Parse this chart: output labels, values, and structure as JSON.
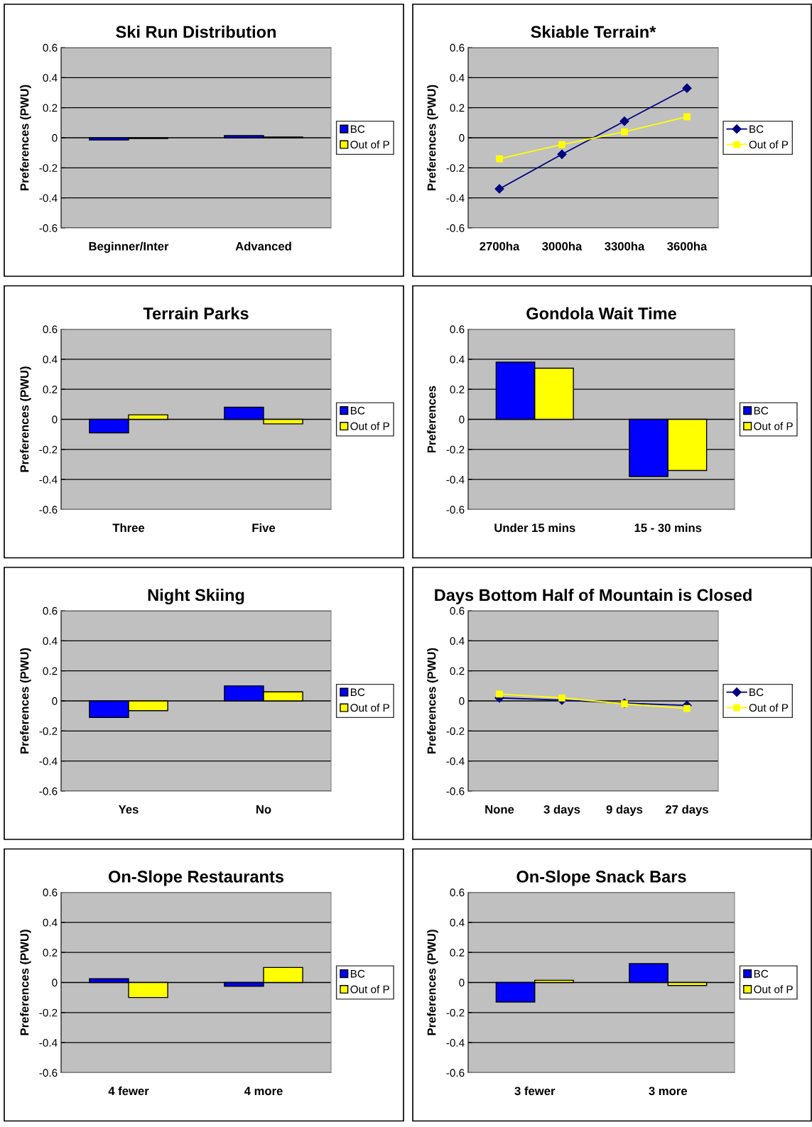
{
  "chart_data": [
    {
      "type": "bar",
      "title": "Ski Run Distribution",
      "ylabel": "Preferences (PWU)",
      "categories": [
        "Beginner/Inter",
        "Advanced"
      ],
      "ylim": [
        -0.6,
        0.6
      ],
      "yticks": [
        -0.6,
        -0.4,
        -0.2,
        0,
        0.2,
        0.4,
        0.6
      ],
      "grid": "y",
      "legend": "right",
      "series": [
        {
          "name": "BC",
          "color": "#0000ff",
          "values": [
            -0.015,
            0.015
          ]
        },
        {
          "name": "Out of P",
          "color": "#ffff00",
          "values": [
            -0.005,
            0.005
          ]
        }
      ]
    },
    {
      "type": "line",
      "title": "Skiable Terrain*",
      "ylabel": "Preferences (PWU)",
      "categories": [
        "2700ha",
        "3000ha",
        "3300ha",
        "3600ha"
      ],
      "ylim": [
        -0.6,
        0.6
      ],
      "yticks": [
        -0.6,
        -0.4,
        -0.2,
        0,
        0.2,
        0.4,
        0.6
      ],
      "grid": "y",
      "legend": "right",
      "series": [
        {
          "name": "BC",
          "color": "#000080",
          "marker": "diamond",
          "values": [
            -0.34,
            -0.11,
            0.11,
            0.33
          ]
        },
        {
          "name": "Out of P",
          "color": "#ffff00",
          "marker": "square",
          "values": [
            -0.14,
            -0.045,
            0.04,
            0.14
          ]
        }
      ]
    },
    {
      "type": "bar",
      "title": "Terrain Parks",
      "ylabel": "Preferences (PWU)",
      "categories": [
        "Three",
        "Five"
      ],
      "ylim": [
        -0.6,
        0.6
      ],
      "yticks": [
        -0.6,
        -0.4,
        -0.2,
        0,
        0.2,
        0.4,
        0.6
      ],
      "grid": "y",
      "legend": "right",
      "series": [
        {
          "name": "BC",
          "color": "#0000ff",
          "values": [
            -0.09,
            0.08
          ]
        },
        {
          "name": "Out of P",
          "color": "#ffff00",
          "values": [
            0.03,
            -0.03
          ]
        }
      ]
    },
    {
      "type": "bar",
      "title": "Gondola Wait Time",
      "ylabel": "Preferences",
      "categories": [
        "Under 15 mins",
        "15 - 30 mins"
      ],
      "ylim": [
        -0.6,
        0.6
      ],
      "yticks": [
        -0.6,
        -0.4,
        -0.2,
        0,
        0.2,
        0.4,
        0.6
      ],
      "grid": "y",
      "legend": "right",
      "series": [
        {
          "name": "BC",
          "color": "#0000ff",
          "values": [
            0.38,
            -0.38
          ]
        },
        {
          "name": "Out of P",
          "color": "#ffff00",
          "values": [
            0.34,
            -0.34
          ]
        }
      ]
    },
    {
      "type": "bar",
      "title": "Night Skiing",
      "ylabel": "Preferences (PWU)",
      "categories": [
        "Yes",
        "No"
      ],
      "ylim": [
        -0.6,
        0.6
      ],
      "yticks": [
        -0.6,
        -0.4,
        -0.2,
        0,
        0.2,
        0.4,
        0.6
      ],
      "grid": "y",
      "legend": "right",
      "series": [
        {
          "name": "BC",
          "color": "#0000ff",
          "values": [
            -0.11,
            0.1
          ]
        },
        {
          "name": "Out of P",
          "color": "#ffff00",
          "values": [
            -0.065,
            0.06
          ]
        }
      ]
    },
    {
      "type": "line",
      "title": "Days Bottom Half of Mountain is Closed",
      "ylabel": "Preferences (PWU)",
      "categories": [
        "None",
        "3 days",
        "9 days",
        "27 days"
      ],
      "ylim": [
        -0.6,
        0.6
      ],
      "yticks": [
        -0.6,
        -0.4,
        -0.2,
        0,
        0.2,
        0.4,
        0.6
      ],
      "grid": "y",
      "legend": "right",
      "series": [
        {
          "name": "BC",
          "color": "#000080",
          "marker": "diamond",
          "values": [
            0.02,
            0.005,
            -0.015,
            -0.03
          ]
        },
        {
          "name": "Out of P",
          "color": "#ffff00",
          "marker": "square",
          "values": [
            0.045,
            0.02,
            -0.02,
            -0.05
          ]
        }
      ]
    },
    {
      "type": "bar",
      "title": "On-Slope Restaurants",
      "ylabel": "Preferences (PWU)",
      "categories": [
        "4 fewer",
        "4 more"
      ],
      "ylim": [
        -0.6,
        0.6
      ],
      "yticks": [
        -0.6,
        -0.4,
        -0.2,
        0,
        0.2,
        0.4,
        0.6
      ],
      "grid": "y",
      "legend": "right",
      "series": [
        {
          "name": "BC",
          "color": "#0000ff",
          "values": [
            0.025,
            -0.025
          ]
        },
        {
          "name": "Out of P",
          "color": "#ffff00",
          "values": [
            -0.1,
            0.1
          ]
        }
      ]
    },
    {
      "type": "bar",
      "title": "On-Slope Snack Bars",
      "ylabel": "Preferences (PWU)",
      "categories": [
        "3 fewer",
        "3 more"
      ],
      "ylim": [
        -0.6,
        0.6
      ],
      "yticks": [
        -0.6,
        -0.4,
        -0.2,
        0,
        0.2,
        0.4,
        0.6
      ],
      "grid": "y",
      "legend": "right",
      "series": [
        {
          "name": "BC",
          "color": "#0000ff",
          "values": [
            -0.13,
            0.125
          ]
        },
        {
          "name": "Out of P",
          "color": "#ffff00",
          "values": [
            0.015,
            -0.02
          ]
        }
      ]
    }
  ]
}
